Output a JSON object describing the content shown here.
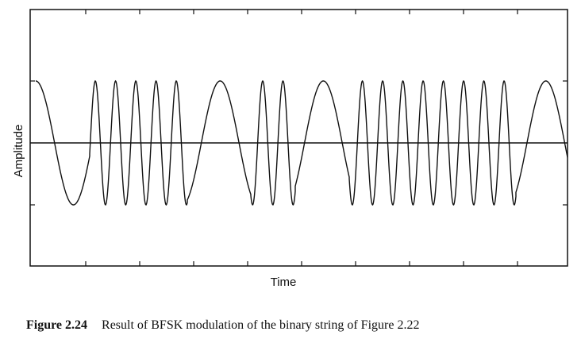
{
  "figure": {
    "y_label": "Amplitude",
    "x_label": "Time",
    "caption_number": "Figure 2.24",
    "caption_text": "Result of BFSK modulation of the binary string of Figure 2.22"
  }
}
